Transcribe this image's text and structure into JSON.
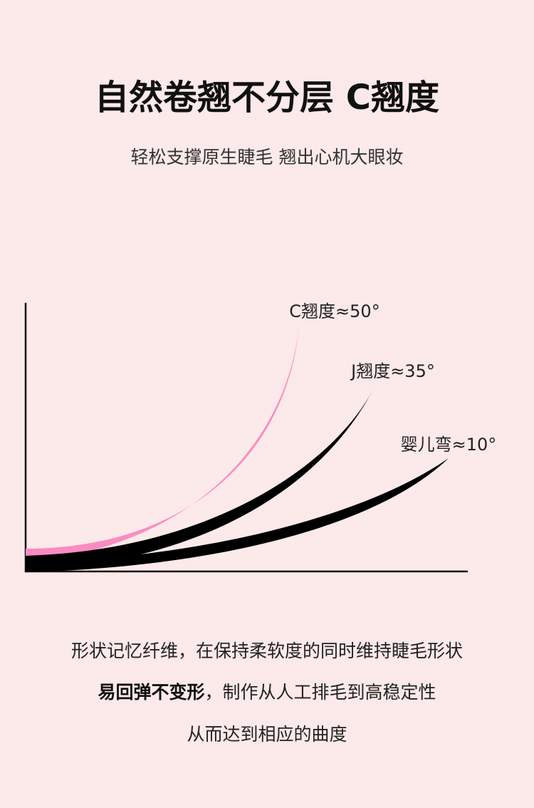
{
  "header": {
    "title": "自然卷翘不分层 C翘度",
    "subtitle": "轻松支撑原生睫毛 翘出心机大眼妆"
  },
  "diagram": {
    "labels": [
      "C翘度≈50°",
      "J翘度≈35°",
      "婴儿弯≈10°"
    ]
  },
  "body": {
    "line1": "形状记忆纤维，在保持柔软度的同时维持睫毛形状",
    "line2_bold": "易回弹不变形",
    "line2_rest": "，制作从人工排毛到高稳定性",
    "line3": "从而达到相应的曲度"
  }
}
